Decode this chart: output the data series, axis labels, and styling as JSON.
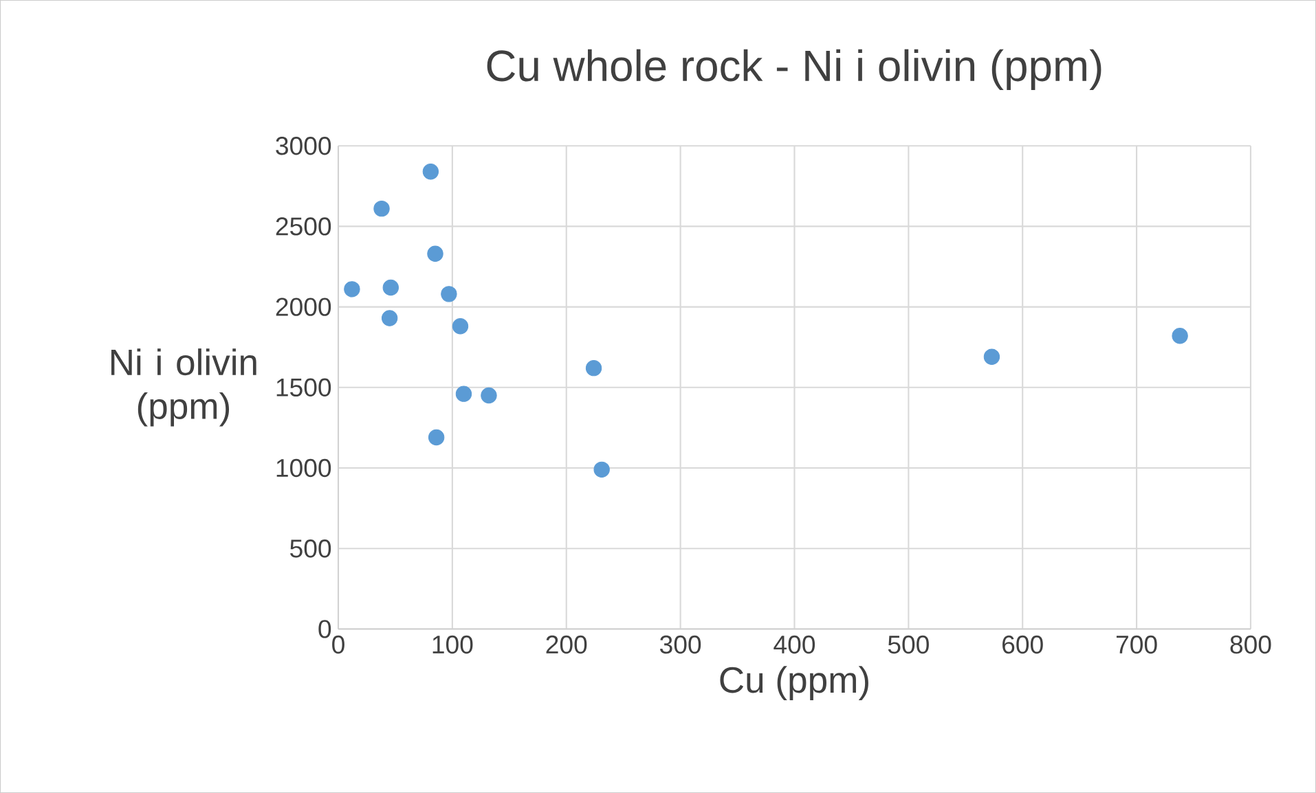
{
  "chart_data": {
    "type": "scatter",
    "title": "Cu whole rock - Ni i olivin (ppm)",
    "xlabel": "Cu (ppm)",
    "ylabel": "Ni i olivin (ppm)",
    "x": [
      81,
      38,
      85,
      12,
      46,
      97,
      45,
      107,
      224,
      110,
      132,
      86,
      231,
      573,
      738
    ],
    "values": [
      2840,
      2610,
      2330,
      2110,
      2120,
      2080,
      1930,
      1880,
      1620,
      1460,
      1450,
      1190,
      990,
      1690,
      1820
    ],
    "color": "#5b9bd5",
    "marker": "circle",
    "xlim": [
      0,
      800
    ],
    "ylim": [
      0,
      3000
    ],
    "xticks": [
      0,
      100,
      200,
      300,
      400,
      500,
      600,
      700,
      800
    ],
    "yticks": [
      0,
      500,
      1000,
      1500,
      2000,
      2500,
      3000
    ],
    "grid": true
  }
}
